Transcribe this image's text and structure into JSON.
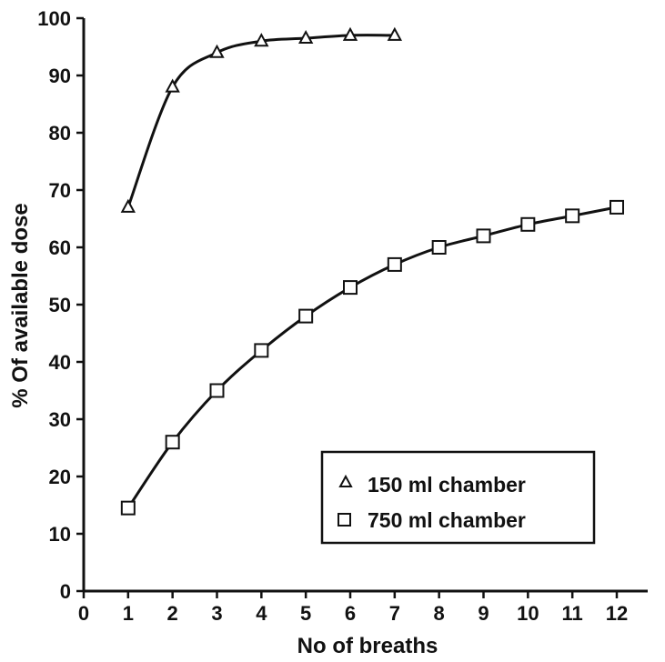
{
  "chart_data": {
    "type": "line",
    "title": "",
    "xlabel": "No of breaths",
    "ylabel": "% Of available dose",
    "xlim": [
      0,
      12
    ],
    "ylim": [
      0,
      100
    ],
    "xticks": [
      0,
      1,
      2,
      3,
      4,
      5,
      6,
      7,
      8,
      9,
      10,
      11,
      12
    ],
    "yticks": [
      0,
      10,
      20,
      30,
      40,
      50,
      60,
      70,
      80,
      90,
      100
    ],
    "grid": false,
    "legend_position": "bottom-right",
    "series": [
      {
        "name": "150 ml chamber",
        "marker": "triangle",
        "x": [
          1,
          2,
          3,
          4,
          5,
          6,
          7
        ],
        "y": [
          67,
          88,
          94,
          96,
          96.5,
          97,
          97
        ]
      },
      {
        "name": "750 ml chamber",
        "marker": "square",
        "x": [
          1,
          2,
          3,
          4,
          5,
          6,
          7,
          8,
          9,
          10,
          11,
          12
        ],
        "y": [
          14.5,
          26,
          35,
          42,
          48,
          53,
          57,
          60,
          62,
          64,
          65.5,
          67
        ]
      }
    ],
    "colors": {
      "line": "#111111",
      "background": "#ffffff"
    }
  }
}
